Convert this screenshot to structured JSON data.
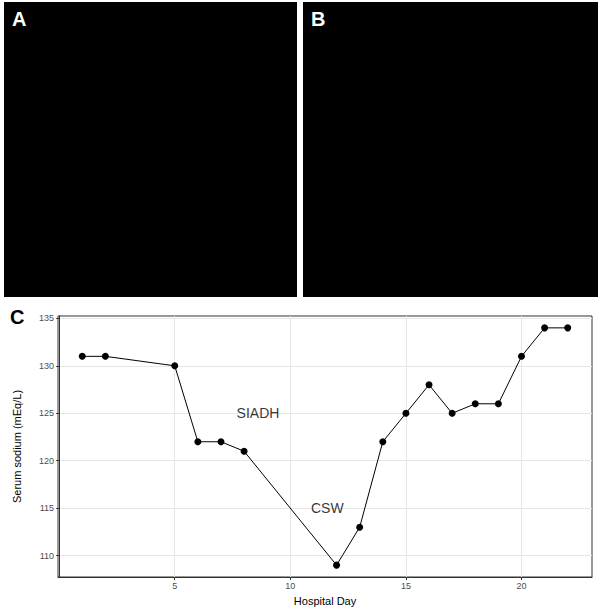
{
  "panel_labels": [
    "A",
    "B",
    "C"
  ],
  "chart_data": {
    "type": "line",
    "x": [
      1,
      2,
      5,
      6,
      7,
      8,
      12,
      13,
      14,
      15,
      16,
      17,
      18,
      19,
      20,
      21,
      22
    ],
    "values": [
      131,
      131,
      130,
      122,
      122,
      121,
      109,
      113,
      122,
      125,
      128,
      125,
      126,
      126,
      131,
      134,
      134
    ],
    "color": "#000000",
    "marker": "circle",
    "line_style": "solid",
    "x_label": "Hospital Day",
    "y_label": "Serum sodium (mEq/L)",
    "xlim": [
      -0.05,
      23.05
    ],
    "xticks": [
      5,
      10,
      15,
      20
    ],
    "ylim": [
      107.75,
      135.25
    ],
    "yticks": [
      110,
      115,
      120,
      125,
      130,
      135
    ],
    "grid": true,
    "annotations": [
      {
        "text": "SIADH",
        "x": 8.6,
        "y": 125
      },
      {
        "text": "CSW",
        "x": 11.6,
        "y": 115
      }
    ]
  }
}
